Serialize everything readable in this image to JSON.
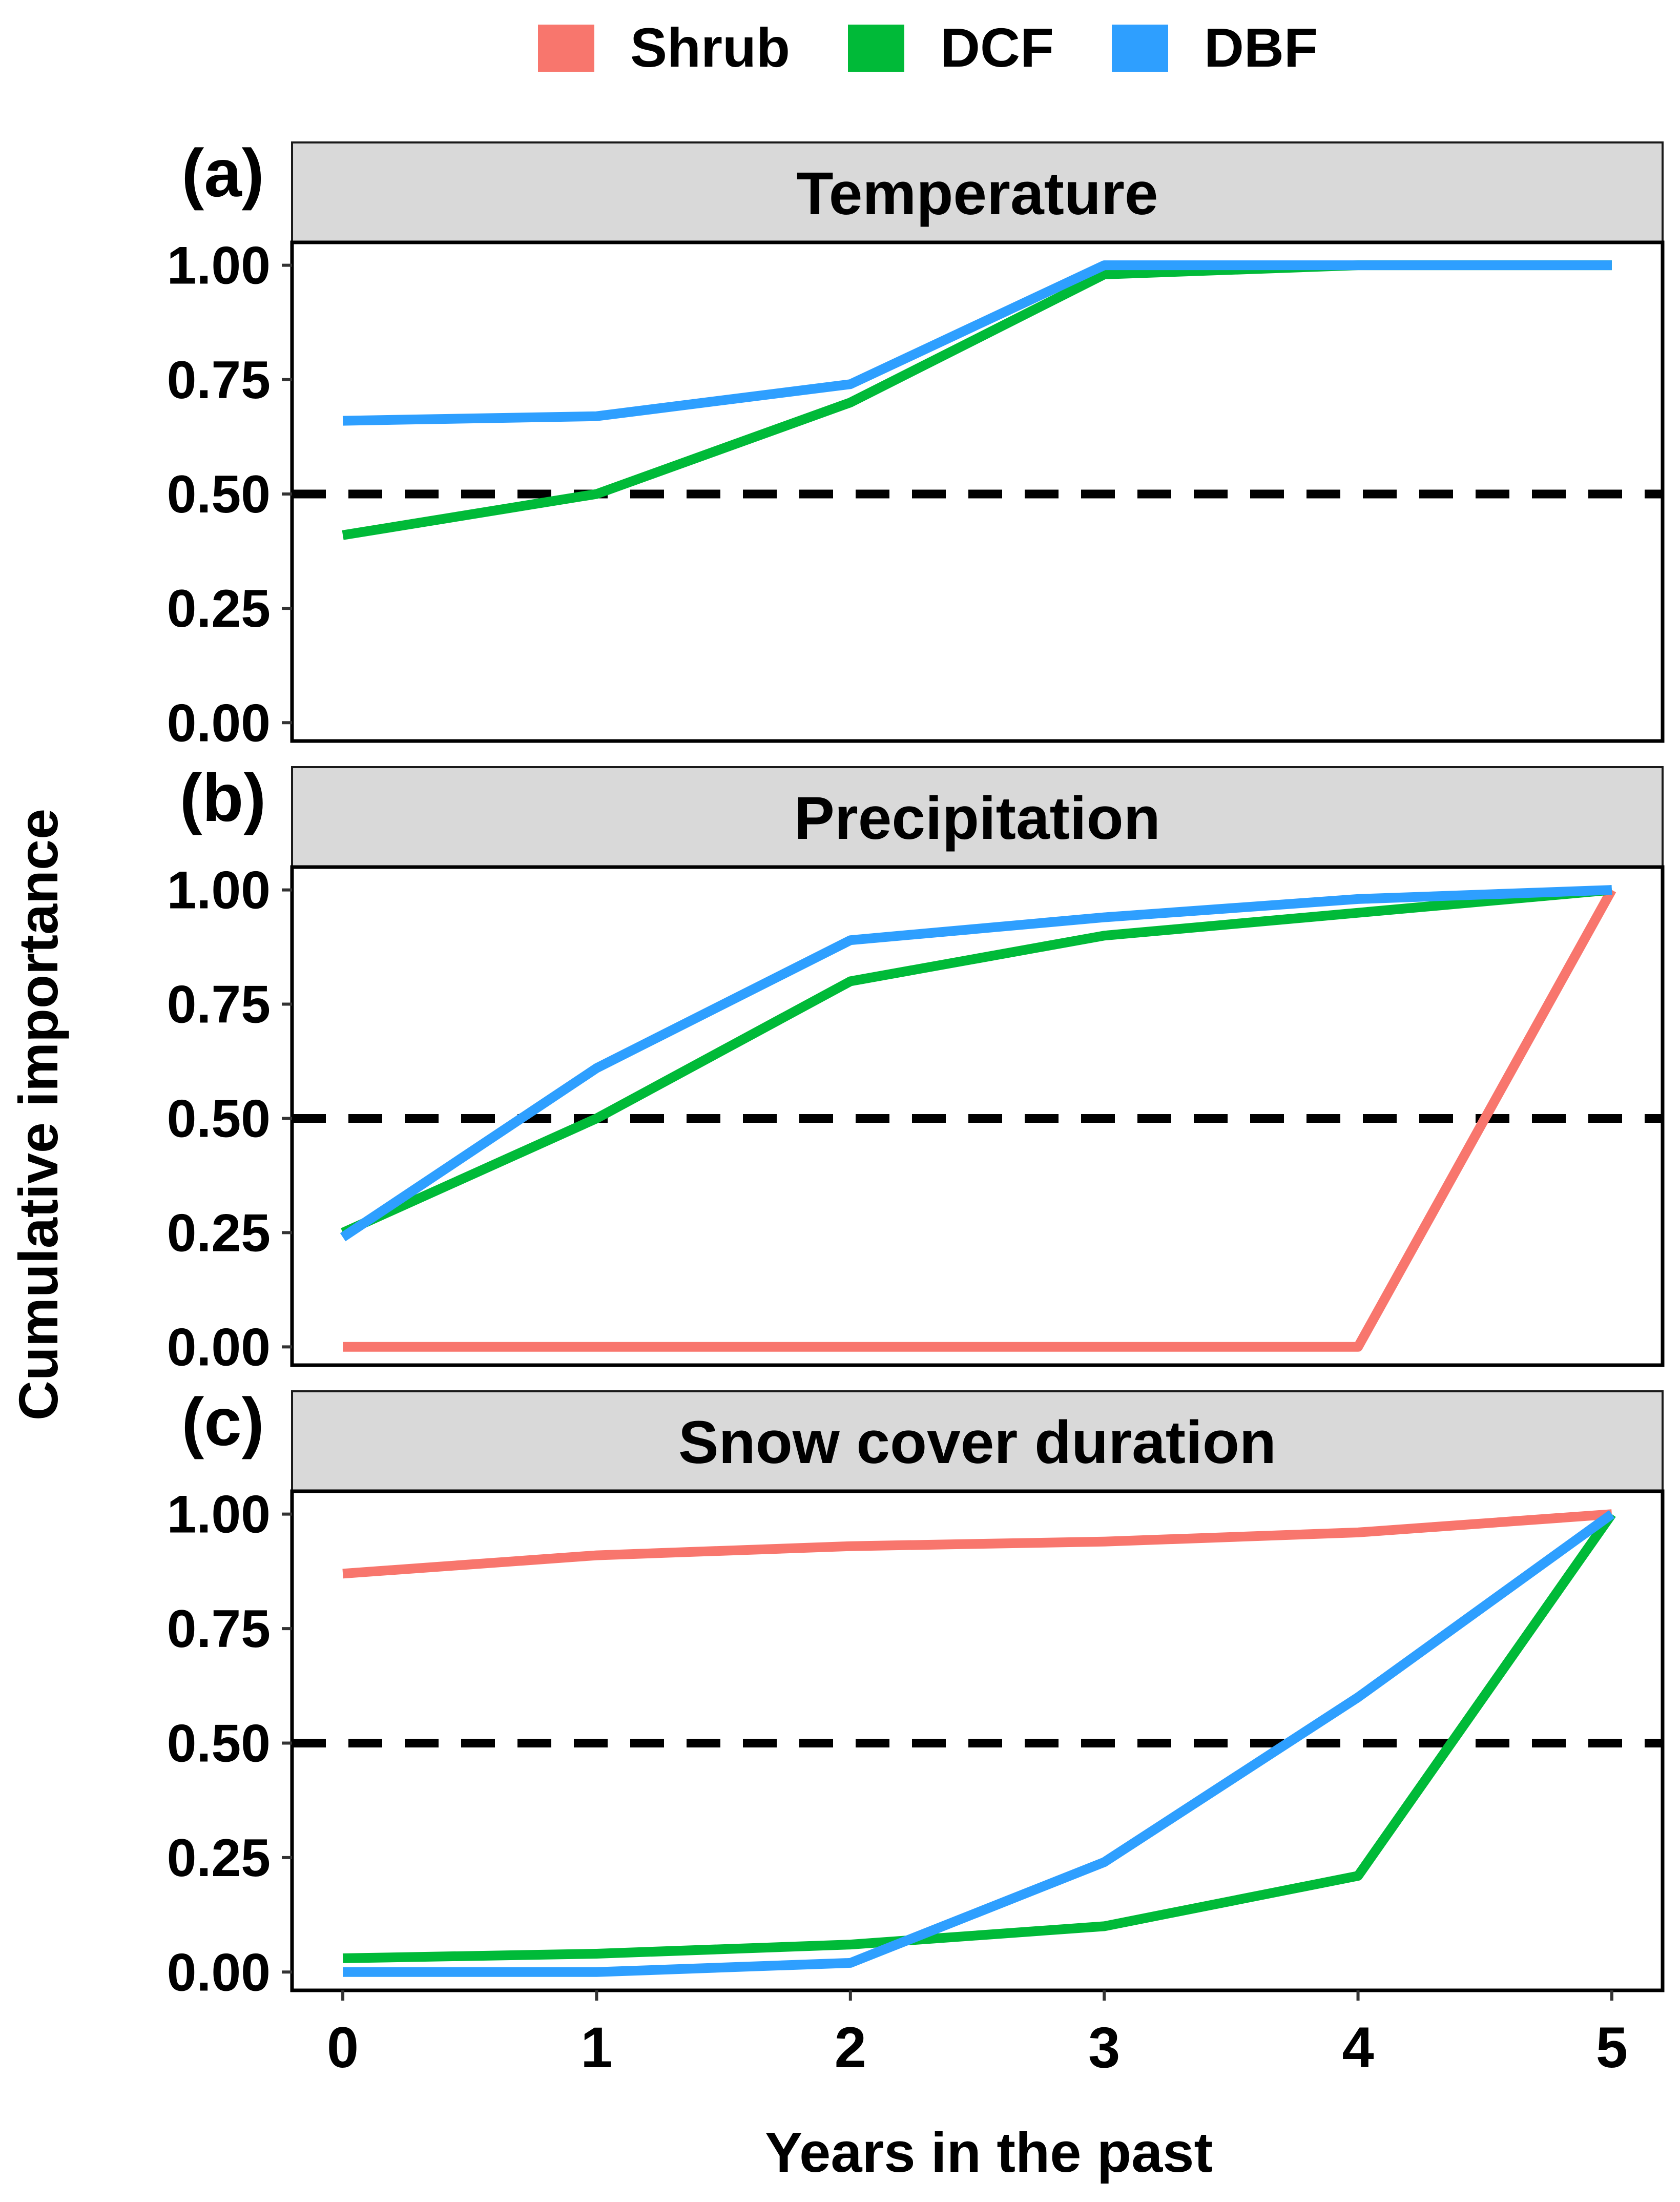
{
  "chart_data": {
    "type": "line",
    "xlabel": "Years in the past",
    "ylabel": "Cumulative importance",
    "x": [
      0,
      1,
      2,
      3,
      4,
      5
    ],
    "xlim": [
      -0.2,
      5.2
    ],
    "ylim": [
      -0.04,
      1.05
    ],
    "yticks": [
      0,
      0.25,
      0.5,
      0.75,
      1
    ],
    "ytick_labels": [
      "0.00",
      "0.25",
      "0.50",
      "0.75",
      "1.00"
    ],
    "xtick_labels": [
      "0",
      "1",
      "2",
      "3",
      "4",
      "5"
    ],
    "reference_line": 0.5,
    "legend": [
      {
        "name": "Shrub",
        "color": "#F8766D"
      },
      {
        "name": "DCF",
        "color": "#00BA38"
      },
      {
        "name": "DBF",
        "color": "#2E9FFF"
      }
    ],
    "panels": [
      {
        "tag": "(a)",
        "title": "Temperature",
        "series": [
          {
            "name": "DCF",
            "color": "#00BA38",
            "values": [
              0.41,
              0.5,
              0.7,
              0.98,
              1.0,
              1.0
            ]
          },
          {
            "name": "DBF",
            "color": "#2E9FFF",
            "values": [
              0.66,
              0.67,
              0.74,
              1.0,
              1.0,
              1.0
            ]
          }
        ]
      },
      {
        "tag": "(b)",
        "title": "Precipitation",
        "series": [
          {
            "name": "Shrub",
            "color": "#F8766D",
            "values": [
              0.0,
              0.0,
              0.0,
              0.0,
              0.0,
              1.0
            ]
          },
          {
            "name": "DCF",
            "color": "#00BA38",
            "values": [
              0.25,
              0.5,
              0.8,
              0.9,
              0.95,
              1.0
            ]
          },
          {
            "name": "DBF",
            "color": "#2E9FFF",
            "values": [
              0.24,
              0.61,
              0.89,
              0.94,
              0.98,
              1.0
            ]
          }
        ]
      },
      {
        "tag": "(c)",
        "title": "Snow cover duration",
        "series": [
          {
            "name": "Shrub",
            "color": "#F8766D",
            "values": [
              0.87,
              0.91,
              0.93,
              0.94,
              0.96,
              1.0
            ]
          },
          {
            "name": "DCF",
            "color": "#00BA38",
            "values": [
              0.03,
              0.04,
              0.06,
              0.1,
              0.21,
              1.0
            ]
          },
          {
            "name": "DBF",
            "color": "#2E9FFF",
            "values": [
              0.0,
              0.0,
              0.02,
              0.24,
              0.6,
              1.0
            ]
          }
        ]
      }
    ]
  }
}
